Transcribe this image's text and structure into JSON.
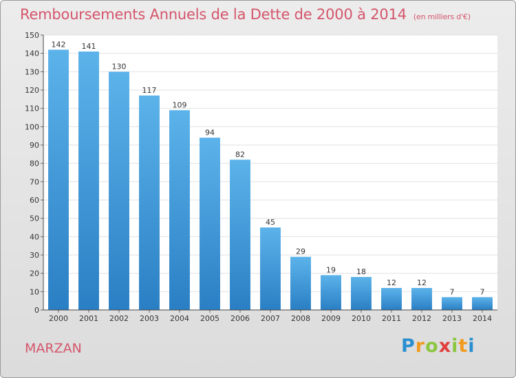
{
  "title": "Remboursements Annuels de la Dette de 2000 à 2014",
  "subtitle": "(en milliers d'€)",
  "place": "MARZAN",
  "logo": {
    "letters": [
      "P",
      "r",
      "o",
      "x",
      "i",
      "t",
      "i"
    ],
    "colors": [
      "#2a8fd0",
      "#f29a1f",
      "#8cc63f",
      "#e23c3c",
      "#8cc63f",
      "#f29a1f",
      "#2a8fd0"
    ]
  },
  "colors": {
    "bar_top": "#5cb3ea",
    "bar_bottom": "#2a7fc4",
    "title": "#d4556b"
  },
  "chart_data": {
    "type": "bar",
    "title": "Remboursements Annuels de la Dette de 2000 à 2014",
    "ylabel": "en milliers d'€",
    "xlabel": "",
    "categories": [
      "2000",
      "2001",
      "2002",
      "2003",
      "2004",
      "2005",
      "2006",
      "2007",
      "2008",
      "2009",
      "2010",
      "2011",
      "2012",
      "2013",
      "2014"
    ],
    "values": [
      142,
      141,
      130,
      117,
      109,
      94,
      82,
      45,
      29,
      19,
      18,
      12,
      12,
      7,
      7
    ],
    "ylim": [
      0,
      150
    ],
    "yticks": [
      0,
      10,
      20,
      30,
      40,
      50,
      60,
      70,
      80,
      90,
      100,
      110,
      120,
      130,
      140,
      150
    ],
    "grid": true
  }
}
